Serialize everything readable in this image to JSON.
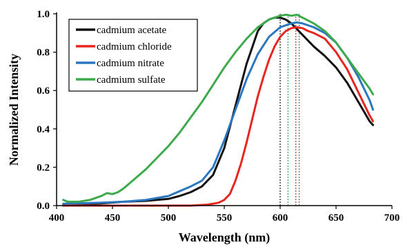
{
  "chart_data": {
    "type": "line",
    "title": "",
    "xlabel": "Wavelength (nm)",
    "ylabel": "Normalized Intensity",
    "xlim": [
      400,
      700
    ],
    "ylim": [
      0,
      1.0
    ],
    "xticks": [
      "400",
      "450",
      "500",
      "550",
      "600",
      "650",
      "700"
    ],
    "xtick_values": [
      400,
      450,
      500,
      550,
      600,
      650,
      700
    ],
    "yticks": [
      "0.0",
      "0.2",
      "0.4",
      "0.6",
      "0.8",
      "1.0"
    ],
    "ytick_values": [
      0,
      0.2,
      0.4,
      0.6,
      0.8,
      1.0
    ],
    "grid": false,
    "legend_position": "top-left",
    "series": [
      {
        "name": "cadmium acetate",
        "color": "#111111",
        "peak_wavelength": 600,
        "x": [
          406,
          420,
          440,
          460,
          480,
          500,
          510,
          520,
          530,
          540,
          550,
          560,
          570,
          580,
          585,
          590,
          595,
          600,
          605,
          610,
          615,
          620,
          625,
          630,
          640,
          650,
          660,
          670,
          675,
          680,
          683
        ],
        "y": [
          0.005,
          0.008,
          0.012,
          0.02,
          0.025,
          0.035,
          0.05,
          0.07,
          0.1,
          0.16,
          0.3,
          0.52,
          0.74,
          0.91,
          0.95,
          0.97,
          0.98,
          0.98,
          0.97,
          0.95,
          0.92,
          0.89,
          0.86,
          0.83,
          0.78,
          0.72,
          0.64,
          0.54,
          0.49,
          0.44,
          0.42
        ]
      },
      {
        "name": "cadmium chloride",
        "color": "#e8261f",
        "peak_wavelength": 614,
        "x": [
          406,
          440,
          480,
          520,
          535,
          545,
          550,
          555,
          560,
          565,
          570,
          575,
          580,
          585,
          590,
          595,
          600,
          605,
          610,
          615,
          620,
          625,
          630,
          640,
          650,
          660,
          670,
          680,
          683
        ],
        "y": [
          0,
          0,
          0,
          0,
          0.005,
          0.015,
          0.03,
          0.06,
          0.13,
          0.22,
          0.33,
          0.45,
          0.57,
          0.67,
          0.76,
          0.83,
          0.88,
          0.91,
          0.925,
          0.93,
          0.925,
          0.91,
          0.9,
          0.87,
          0.8,
          0.71,
          0.59,
          0.47,
          0.44
        ]
      },
      {
        "name": "cadmium nitrate",
        "color": "#2a77c0",
        "peak_wavelength": 617,
        "x": [
          406,
          420,
          440,
          460,
          480,
          500,
          520,
          530,
          540,
          550,
          560,
          570,
          580,
          590,
          600,
          610,
          615,
          620,
          630,
          640,
          650,
          660,
          670,
          680,
          683
        ],
        "y": [
          0.01,
          0.012,
          0.015,
          0.02,
          0.03,
          0.05,
          0.1,
          0.13,
          0.2,
          0.34,
          0.5,
          0.66,
          0.79,
          0.88,
          0.93,
          0.95,
          0.955,
          0.95,
          0.93,
          0.9,
          0.85,
          0.77,
          0.67,
          0.55,
          0.5
        ]
      },
      {
        "name": "cadmium sulfate",
        "color": "#3caa4a",
        "peak_wavelength": 607,
        "x": [
          406,
          410,
          420,
          430,
          440,
          445,
          450,
          455,
          460,
          470,
          480,
          490,
          500,
          510,
          520,
          530,
          540,
          550,
          560,
          570,
          580,
          590,
          600,
          605,
          610,
          615,
          620,
          630,
          640,
          650,
          660,
          670,
          680,
          683
        ],
        "y": [
          0.03,
          0.02,
          0.02,
          0.03,
          0.05,
          0.065,
          0.06,
          0.07,
          0.09,
          0.14,
          0.19,
          0.25,
          0.31,
          0.38,
          0.46,
          0.54,
          0.63,
          0.72,
          0.8,
          0.87,
          0.93,
          0.97,
          0.99,
          0.995,
          0.99,
          0.995,
          0.98,
          0.95,
          0.91,
          0.85,
          0.77,
          0.69,
          0.61,
          0.58
        ]
      }
    ]
  }
}
